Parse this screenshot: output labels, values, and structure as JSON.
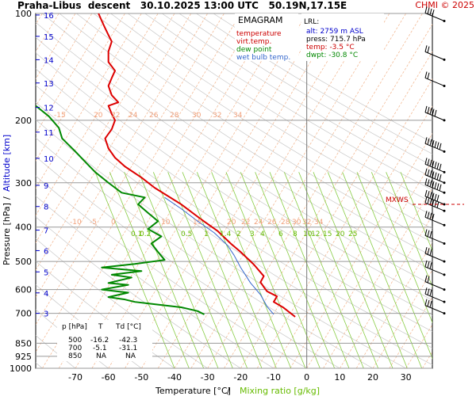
{
  "header": {
    "station": "Praha-Libus",
    "mode": "descent",
    "datetime": "30.10.2025 13:00 UTC",
    "coords": "50.19N,17.15E",
    "credit": "CHMI © 2025"
  },
  "chart_data": {
    "type": "line",
    "title": "EMAGRAM",
    "xlabel": "Temperature [°C]",
    "xlabel_sep": "/",
    "xlabel2": "Mixing ratio [g/kg]",
    "ylabel": "Pressure [hPa]",
    "ylabel_sep": "/",
    "ylabel2": "Altitude [km]",
    "x_scale": "linear",
    "y_scale": "log",
    "xlim": [
      -82,
      38
    ],
    "ylim": [
      1000,
      100
    ],
    "x_ticks": [
      -70,
      -60,
      -50,
      -40,
      -30,
      -20,
      -10,
      0,
      10,
      20,
      30
    ],
    "y_ticks": [
      100,
      200,
      300,
      400,
      500,
      600,
      700,
      850,
      925,
      1000
    ],
    "altitude_ticks": [
      {
        "km": "16",
        "p": 101
      },
      {
        "km": "15",
        "p": 116
      },
      {
        "km": "14",
        "p": 135
      },
      {
        "km": "13",
        "p": 157
      },
      {
        "km": "12",
        "p": 184
      },
      {
        "km": "11",
        "p": 216
      },
      {
        "km": "10",
        "p": 256
      },
      {
        "km": "9",
        "p": 305
      },
      {
        "km": "8",
        "p": 350
      },
      {
        "km": "7",
        "p": 408
      },
      {
        "km": "6",
        "p": 466
      },
      {
        "km": "5",
        "p": 535
      },
      {
        "km": "4",
        "p": 613
      },
      {
        "km": "3",
        "p": 700
      }
    ],
    "legend": {
      "position": "top-right",
      "items": [
        {
          "label": "temperature",
          "color": "#cc0000"
        },
        {
          "label": "virt.temp.",
          "color": "#cc0000"
        },
        {
          "label": "dew point",
          "color": "#008800"
        },
        {
          "label": "wet bulb temp.",
          "color": "#3366cc"
        }
      ]
    },
    "lrl_box": {
      "title": "LRL:",
      "alt": "alt: 2759 m ASL",
      "press": "press: 715.7 hPa",
      "temp": "temp: -3.5 °C",
      "dwpt": "dwpt: -30.8 °C"
    },
    "mixing_ratio_labels": [
      "0.1",
      "0.2",
      "0.5",
      "1",
      "1.4",
      "2",
      "3",
      "4",
      "6",
      "8",
      "10",
      "12",
      "15",
      "20",
      "25"
    ],
    "isotherm_labels_upper": [
      "-15",
      "20",
      "22",
      "24",
      "26",
      "28",
      "30",
      "32",
      "34"
    ],
    "isotherm_labels_mid": [
      "-10",
      "-5",
      "0",
      "10",
      "15",
      "20",
      "22",
      "24",
      "26",
      "28",
      "30",
      "32",
      "34"
    ],
    "table": {
      "headers": [
        "p [hPa]",
        "T",
        "Td [°C]"
      ],
      "rows": [
        [
          "500",
          "-16.2",
          "-42.3"
        ],
        [
          "700",
          "-5.1",
          "-31.1"
        ],
        [
          "850",
          "NA",
          "NA"
        ]
      ]
    },
    "mxws_label": "MXWS",
    "series": [
      {
        "name": "temperature",
        "color": "#dd0000",
        "points": [
          [
            -3.5,
            716
          ],
          [
            -7,
            675
          ],
          [
            -10,
            650
          ],
          [
            -9,
            627
          ],
          [
            -12,
            607
          ],
          [
            -13,
            590
          ],
          [
            -14,
            572
          ],
          [
            -13,
            550
          ],
          [
            -16,
            510
          ],
          [
            -20,
            470
          ],
          [
            -23,
            445
          ],
          [
            -27,
            410
          ],
          [
            -32,
            380
          ],
          [
            -38,
            345
          ],
          [
            -46,
            310
          ],
          [
            -50,
            290
          ],
          [
            -55,
            270
          ],
          [
            -58,
            255
          ],
          [
            -60,
            240
          ],
          [
            -61,
            225
          ],
          [
            -59,
            212
          ],
          [
            -58,
            200
          ],
          [
            -59,
            192
          ],
          [
            -60,
            182
          ],
          [
            -57,
            178
          ],
          [
            -59,
            170
          ],
          [
            -60,
            160
          ],
          [
            -59,
            152
          ],
          [
            -58,
            145
          ],
          [
            -60,
            137
          ],
          [
            -60,
            128
          ],
          [
            -59,
            120
          ],
          [
            -60,
            115
          ],
          [
            -61,
            110
          ],
          [
            -62,
            105
          ],
          [
            -63,
            100
          ]
        ]
      },
      {
        "name": "wet bulb temp.",
        "color": "#3366cc",
        "points": [
          [
            -10,
            705
          ],
          [
            -12,
            670
          ],
          [
            -14,
            620
          ],
          [
            -17,
            575
          ],
          [
            -20,
            520
          ],
          [
            -22,
            480
          ],
          [
            -24,
            450
          ],
          [
            -28,
            415
          ],
          [
            -33,
            385
          ],
          [
            -38,
            355
          ],
          [
            -43,
            330
          ]
        ]
      },
      {
        "name": "dew point",
        "color": "#008800",
        "points": [
          [
            -31,
            705
          ],
          [
            -33,
            690
          ],
          [
            -38,
            673
          ],
          [
            -46,
            660
          ],
          [
            -52,
            650
          ],
          [
            -55,
            640
          ],
          [
            -60,
            630
          ],
          [
            -54,
            612
          ],
          [
            -62,
            600
          ],
          [
            -54,
            582
          ],
          [
            -60,
            575
          ],
          [
            -53,
            555
          ],
          [
            -59,
            545
          ],
          [
            -50,
            532
          ],
          [
            -62,
            520
          ],
          [
            -52,
            508
          ],
          [
            -43,
            495
          ],
          [
            -45,
            470
          ],
          [
            -47,
            445
          ],
          [
            -44,
            425
          ],
          [
            -48,
            405
          ],
          [
            -45,
            385
          ],
          [
            -48,
            365
          ],
          [
            -51,
            345
          ],
          [
            -49,
            330
          ],
          [
            -56,
            320
          ],
          [
            -60,
            300
          ],
          [
            -64,
            280
          ],
          [
            -67,
            262
          ],
          [
            -70,
            245
          ],
          [
            -74,
            225
          ],
          [
            -75,
            210
          ],
          [
            -78,
            195
          ],
          [
            -82,
            182
          ]
        ]
      }
    ],
    "wind_barbs": [
      {
        "p": 105,
        "speed_kt": 35
      },
      {
        "p": 135,
        "speed_kt": 15
      },
      {
        "p": 160,
        "speed_kt": 15
      },
      {
        "p": 200,
        "speed_kt": 50
      },
      {
        "p": 245,
        "speed_kt": 70
      },
      {
        "p": 280,
        "speed_kt": 70
      },
      {
        "p": 300,
        "speed_kt": 70
      },
      {
        "p": 320,
        "speed_kt": 65
      },
      {
        "p": 345,
        "speed_kt": 60
      },
      {
        "p": 360,
        "speed_kt": 60
      },
      {
        "p": 395,
        "speed_kt": 40
      },
      {
        "p": 445,
        "speed_kt": 30
      },
      {
        "p": 500,
        "speed_kt": 25
      },
      {
        "p": 545,
        "speed_kt": 25
      },
      {
        "p": 600,
        "speed_kt": 20
      },
      {
        "p": 650,
        "speed_kt": 25
      },
      {
        "p": 700,
        "speed_kt": 25
      }
    ]
  }
}
